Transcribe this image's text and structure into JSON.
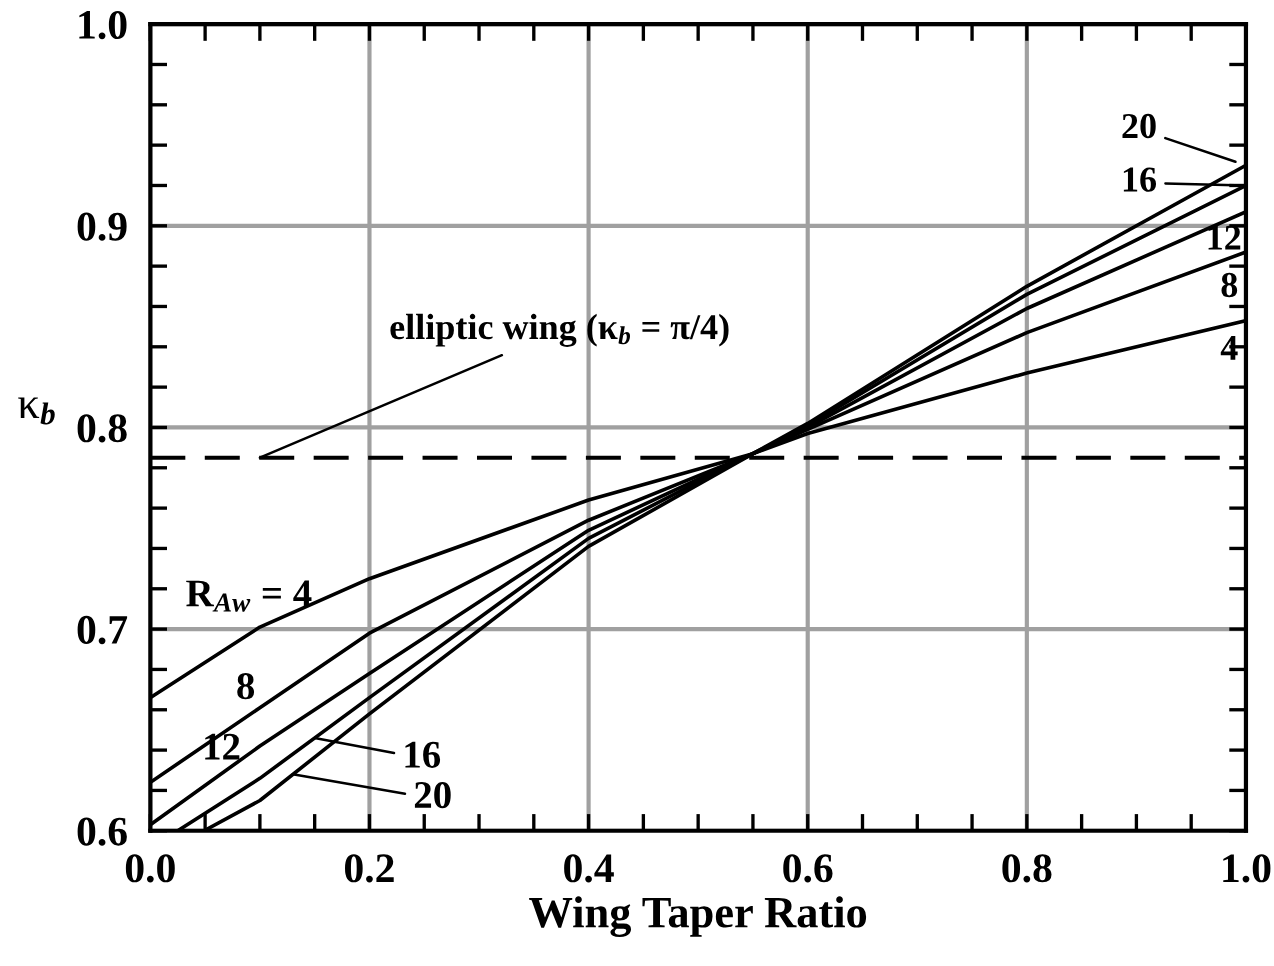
{
  "chart_data": {
    "type": "line",
    "xlabel": "Wing Taper Ratio",
    "ylabel": "κ$_{b}$",
    "series": [
      {
        "name": "4",
        "color": "#000000",
        "x": [
          0,
          0.1,
          0.2,
          0.4,
          0.55,
          0.6,
          0.8,
          1.0
        ],
        "values": [
          0.666,
          0.701,
          0.725,
          0.764,
          0.787,
          0.797,
          0.827,
          0.853
        ]
      },
      {
        "name": "8",
        "color": "#000000",
        "x": [
          0,
          0.1,
          0.2,
          0.4,
          0.55,
          0.6,
          0.8,
          1.0
        ],
        "values": [
          0.624,
          0.661,
          0.698,
          0.754,
          0.787,
          0.799,
          0.847,
          0.887
        ]
      },
      {
        "name": "12",
        "color": "#000000",
        "x": [
          0,
          0.1,
          0.2,
          0.4,
          0.55,
          0.6,
          0.8,
          1.0
        ],
        "values": [
          0.603,
          0.642,
          0.678,
          0.749,
          0.787,
          0.8,
          0.859,
          0.907
        ]
      },
      {
        "name": "16",
        "color": "#000000",
        "x": [
          0.025,
          0.1,
          0.2,
          0.4,
          0.55,
          0.6,
          0.8,
          1.0
        ],
        "values": [
          0.6,
          0.626,
          0.666,
          0.745,
          0.787,
          0.801,
          0.866,
          0.92
        ]
      },
      {
        "name": "20",
        "color": "#000000",
        "x": [
          0.049,
          0.1,
          0.2,
          0.4,
          0.55,
          0.6,
          0.8,
          1.0
        ],
        "values": [
          0.6,
          0.615,
          0.658,
          0.741,
          0.787,
          0.802,
          0.87,
          0.93
        ]
      }
    ],
    "annotations": [
      "R$_{Aw}$ = 4",
      "8",
      "12",
      {
        "text": "16",
        "x": 0.15,
        "y": 0.646
      },
      {
        "text": "20",
        "x": 0.13,
        "y": 0.628
      }
    ],
    "ref_lines": [
      {
        "axis": "y",
        "value": 0.785,
        "label": "elliptic wing (κ$_{b}$ = π/4)",
        "color": "#000000",
        "line_style": "dashed"
      }
    ],
    "xlim": [
      0,
      1
    ],
    "ylim": [
      0.6,
      1
    ],
    "xticks": [
      {
        "value": 0,
        "label": "0.0"
      },
      {
        "value": 0.05,
        "label": null
      },
      {
        "value": 0.1,
        "label": null
      },
      {
        "value": 0.15,
        "label": null
      },
      {
        "value": 0.2,
        "label": "0.2"
      },
      {
        "value": 0.25,
        "label": null
      },
      {
        "value": 0.3,
        "label": null
      },
      {
        "value": 0.35,
        "label": null
      },
      {
        "value": 0.4,
        "label": "0.4"
      },
      {
        "value": 0.45,
        "label": null
      },
      {
        "value": 0.5,
        "label": null
      },
      {
        "value": 0.55,
        "label": null
      },
      {
        "value": 0.6,
        "label": "0.6"
      },
      {
        "value": 0.65,
        "label": null
      },
      {
        "value": 0.7,
        "label": null
      },
      {
        "value": 0.75,
        "label": null
      },
      {
        "value": 0.8,
        "label": "0.8"
      },
      {
        "value": 0.85,
        "label": null
      },
      {
        "value": 0.9,
        "label": null
      },
      {
        "value": 0.95,
        "label": null
      },
      {
        "value": 1,
        "label": "1.0"
      }
    ],
    "yticks": [
      {
        "value": 0.6,
        "label": "0.6"
      },
      {
        "value": 0.62,
        "label": null
      },
      {
        "value": 0.64,
        "label": null
      },
      {
        "value": 0.66,
        "label": null
      },
      {
        "value": 0.68,
        "label": null
      },
      {
        "value": 0.7,
        "label": "0.7"
      },
      {
        "value": 0.72,
        "label": null
      },
      {
        "value": 0.74,
        "label": null
      },
      {
        "value": 0.76,
        "label": null
      },
      {
        "value": 0.78,
        "label": null
      },
      {
        "value": 0.8,
        "label": "0.8"
      },
      {
        "value": 0.82,
        "label": null
      },
      {
        "value": 0.84,
        "label": null
      },
      {
        "value": 0.86,
        "label": null
      },
      {
        "value": 0.88,
        "label": null
      },
      {
        "value": 0.9,
        "label": "0.9"
      },
      {
        "value": 0.92,
        "label": null
      },
      {
        "value": 0.94,
        "label": null
      },
      {
        "value": 0.96,
        "label": null
      },
      {
        "value": 0.98,
        "label": null
      },
      {
        "value": 1,
        "label": "1.0"
      }
    ],
    "grid": true,
    "marker": "none",
    "line_style": "solid",
    "legend": "right"
  }
}
